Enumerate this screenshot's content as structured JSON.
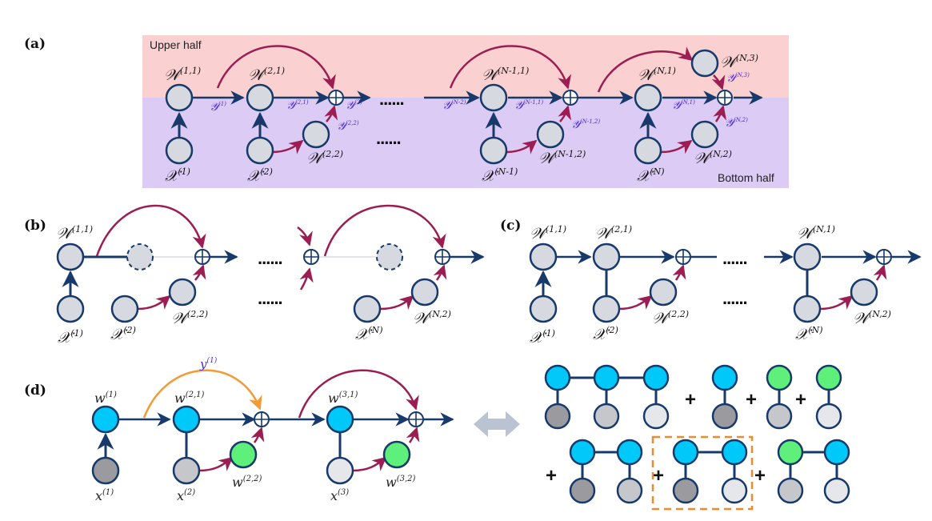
{
  "panels": {
    "a": "(a)",
    "b": "(b)",
    "c": "(c)",
    "d": "(d)"
  },
  "halves": {
    "upper": "Upper half",
    "bottom": "Bottom half"
  },
  "colors": {
    "upper_bg": "#fbd0d0",
    "bottom_bg": "#dccbf5",
    "node_gray": "#d7d9e0",
    "node_blue": "#00c8f8",
    "node_green": "#5ef07a",
    "arrow_dark": "#173a6b",
    "arrow_crimson": "#9b1d52",
    "arrow_orange": "#f39a34",
    "dash_orange": "#ef8a2e"
  },
  "ellipsis": "......",
  "plus_sign": "+",
  "symbols": {
    "W": "𝒲",
    "X": "𝒳",
    "Y": "𝒴",
    "w": "w",
    "x": "x",
    "y": "𝑦"
  },
  "sups": {
    "11": "(1,1)",
    "21": "(2,1)",
    "22": "(2,2)",
    "N11": "(N-1,1)",
    "N12": "(N-1,2)",
    "N1": "(N,1)",
    "N2": "(N,2)",
    "N3": "(N,3)",
    "x1": "(1)",
    "x2": "(2)",
    "xN1": "(N-1)",
    "xN": "(N)",
    "x3": "(3)",
    "d31": "(3,1)",
    "d32": "(3,2)"
  },
  "ysups": {
    "y1": "(1)",
    "y21": "(2,1)",
    "y22": "(2,2)",
    "y2": "(2)",
    "yN2": "(N-2)",
    "yN11": "(N-1,1)",
    "yN12": "(N-1,2)",
    "yN1": "(N,1)",
    "yN2b": "(N,2)",
    "yN3": "(N,3)"
  },
  "icons": {
    "bidirectional-arrow": "double-headed arrow",
    "sum-node": "circled plus"
  }
}
